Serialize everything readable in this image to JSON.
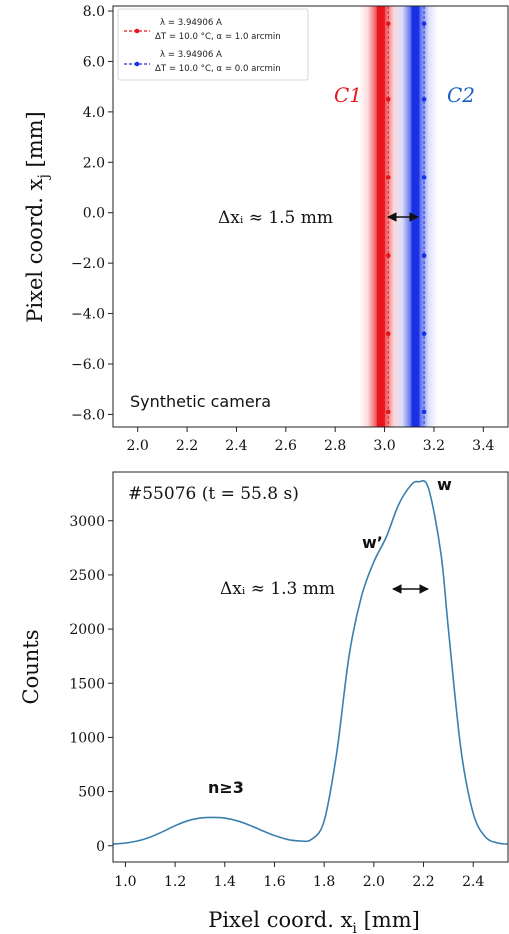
{
  "chart_data": [
    {
      "type": "line",
      "ylabel": "Pixel coord. x",
      "ylabel_sub": "j",
      "ylabel_unit": " [mm]",
      "xlim": [
        1.9,
        3.5
      ],
      "ylim": [
        -8.5,
        8.2
      ],
      "xticks": [
        "2.0",
        "2.2",
        "2.4",
        "2.6",
        "2.8",
        "3.0",
        "3.2",
        "3.4"
      ],
      "xtick_values": [
        2.0,
        2.2,
        2.4,
        2.6,
        2.8,
        3.0,
        3.2,
        3.4
      ],
      "yticks": [
        "8.0",
        "6.0",
        "4.0",
        "2.0",
        "0.0",
        "−2.0",
        "−4.0",
        "−6.0",
        "−8.0"
      ],
      "ytick_values": [
        8,
        6,
        4,
        2,
        0,
        -2,
        -4,
        -6,
        -8
      ],
      "legend_position": "upper-left",
      "series": [
        {
          "name_line1": "λ = 3.94906 A",
          "name_line2": "ΔT = 10.0 °C, α = 1.0 arcmin",
          "color": "#e8141b",
          "center_x": 2.985,
          "marker_x": 3.015,
          "marker_y": [
            7.5,
            4.5,
            1.4,
            -1.7,
            -4.8,
            -7.9
          ]
        },
        {
          "name_line1": "λ = 3.94906 A",
          "name_line2": "ΔT = 10.0 °C, α = 0.0 arcmin",
          "color": "#1830e6",
          "center_x": 3.125,
          "marker_x": 3.16,
          "marker_y": [
            7.5,
            4.5,
            1.4,
            -1.7,
            -4.8,
            -7.9
          ]
        }
      ],
      "labels": {
        "c1": "C1",
        "c2": "C2",
        "delta": "Δxᵢ ≈ 1.5 mm",
        "corner": "Synthetic camera"
      },
      "colors": {
        "c1": "#e8141b",
        "c2": "#1a5fc0",
        "arrow": "#111111"
      }
    },
    {
      "type": "line",
      "xlabel": "Pixel coord. x",
      "xlabel_sub": "i",
      "xlabel_unit": " [mm]",
      "ylabel": "Counts",
      "xlim": [
        0.95,
        2.54
      ],
      "ylim": [
        -150,
        3450
      ],
      "xticks": [
        "1.0",
        "1.2",
        "1.4",
        "1.6",
        "1.8",
        "2.0",
        "2.2",
        "2.4"
      ],
      "xtick_values": [
        1.0,
        1.2,
        1.4,
        1.6,
        1.8,
        2.0,
        2.2,
        2.4
      ],
      "yticks": [
        "3000",
        "2500",
        "2000",
        "1500",
        "1000",
        "500",
        "0"
      ],
      "ytick_values": [
        3000,
        2500,
        2000,
        1500,
        1000,
        500,
        0
      ],
      "series": [
        {
          "color": "#3b7fae",
          "x": [
            0.95,
            1.0,
            1.05,
            1.1,
            1.15,
            1.2,
            1.25,
            1.3,
            1.35,
            1.4,
            1.45,
            1.5,
            1.55,
            1.6,
            1.65,
            1.7,
            1.75,
            1.8,
            1.85,
            1.9,
            1.95,
            2.0,
            2.05,
            2.1,
            2.15,
            2.18,
            2.22,
            2.27,
            2.3,
            2.35,
            2.4,
            2.45,
            2.5,
            2.54
          ],
          "y": [
            15,
            25,
            45,
            80,
            130,
            185,
            230,
            255,
            262,
            255,
            230,
            190,
            140,
            95,
            60,
            45,
            60,
            230,
            850,
            1750,
            2300,
            2620,
            2850,
            3150,
            3330,
            3360,
            3300,
            2700,
            2000,
            900,
            300,
            80,
            25,
            15
          ]
        }
      ],
      "labels": {
        "corner": "#55076 (t = 55.8 s)",
        "peak_w": "w",
        "peak_wp": "w’",
        "peak_n": "n≥3",
        "delta": "Δxᵢ ≈ 1.3 mm"
      }
    }
  ]
}
